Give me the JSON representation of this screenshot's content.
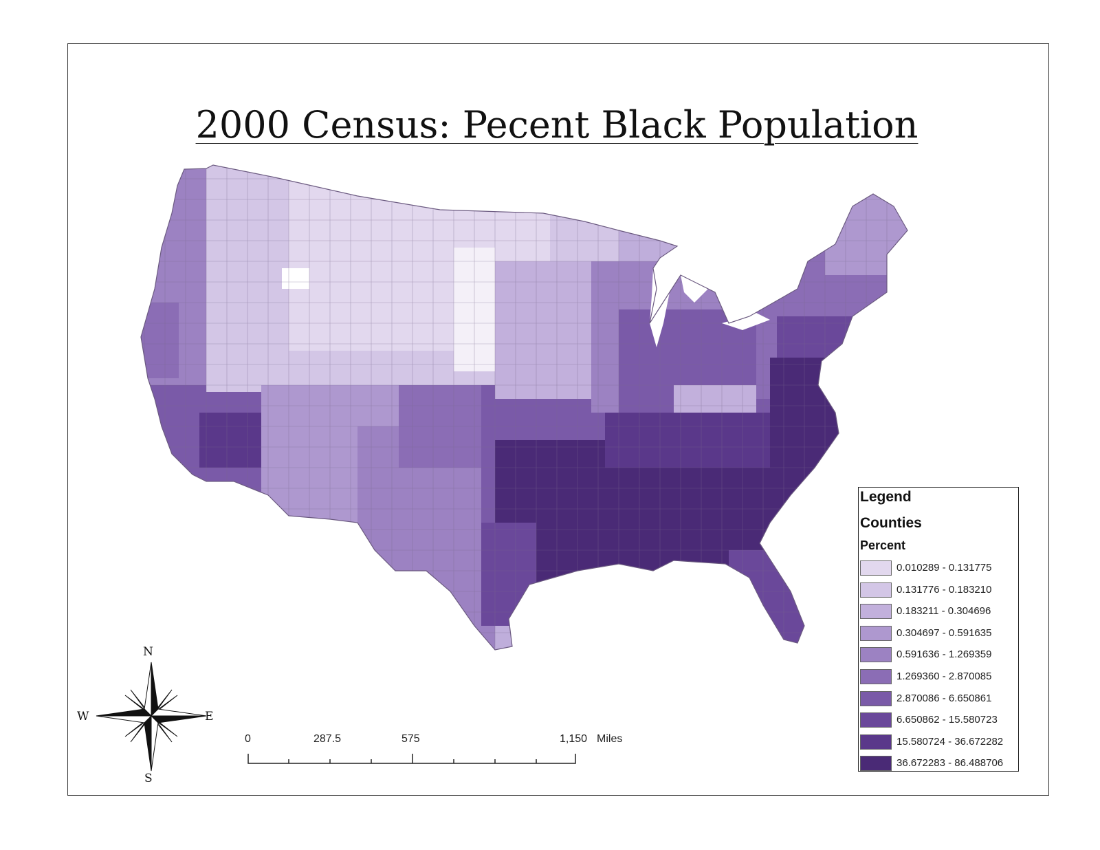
{
  "map": {
    "title": "2000 Census: Pecent Black Population"
  },
  "legend": {
    "title": "Legend",
    "layer": "Counties",
    "field": "Percent",
    "classes": [
      {
        "label": "0.010289 - 0.131775",
        "color": "#e2d8ee"
      },
      {
        "label": "0.131776 - 0.183210",
        "color": "#d3c6e6"
      },
      {
        "label": "0.183211 - 0.304696",
        "color": "#c2b0dc"
      },
      {
        "label": "0.304697 - 0.591635",
        "color": "#ae98cf"
      },
      {
        "label": "0.591636 - 1.269359",
        "color": "#9c82c2"
      },
      {
        "label": "1.269360 - 2.870085",
        "color": "#8b6db5"
      },
      {
        "label": "2.870086 - 6.650861",
        "color": "#7a5aa8"
      },
      {
        "label": "6.650862 - 15.580723",
        "color": "#6a489a"
      },
      {
        "label": "15.580724 - 36.672282",
        "color": "#5a388a"
      },
      {
        "label": "36.672283 - 86.488706",
        "color": "#4a2a76"
      }
    ]
  },
  "scale_bar": {
    "labels": [
      "0",
      "287.5",
      "575",
      "1,150",
      "Miles"
    ]
  },
  "compass": {
    "north": "N",
    "south": "S",
    "east": "E",
    "west": "W"
  }
}
